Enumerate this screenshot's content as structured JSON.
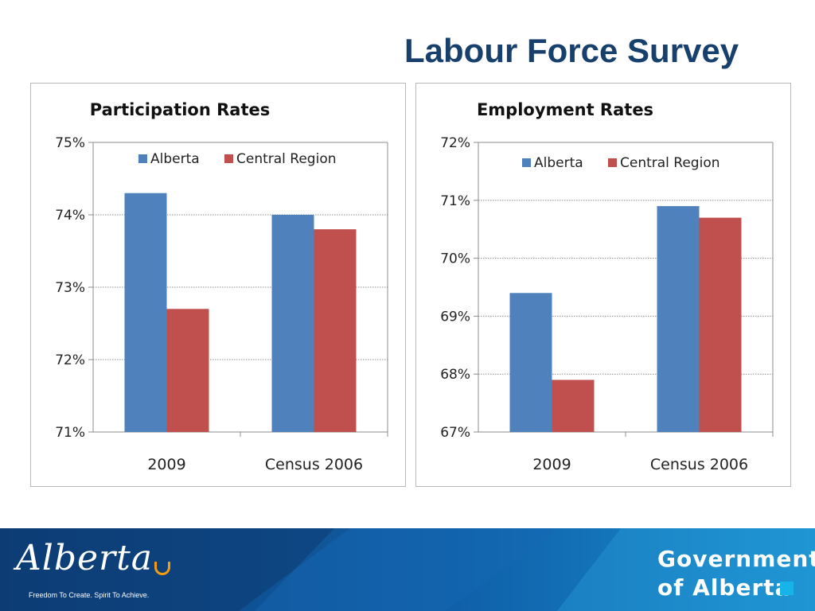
{
  "slide": {
    "title": "Labour Force Survey"
  },
  "chart_data": [
    {
      "type": "bar",
      "title": "Participation Rates",
      "categories": [
        "2009",
        "Census 2006"
      ],
      "series": [
        {
          "name": "Alberta",
          "values": [
            74.3,
            74.0
          ],
          "color": "#4f81bd"
        },
        {
          "name": "Central Region",
          "values": [
            72.7,
            73.8
          ],
          "color": "#c0504d"
        }
      ],
      "ylim": [
        71,
        75
      ],
      "yticks": [
        "75%",
        "74%",
        "73%",
        "72%",
        "71%"
      ],
      "grid": true,
      "legend": "top"
    },
    {
      "type": "bar",
      "title": "Employment Rates",
      "categories": [
        "2009",
        "Census 2006"
      ],
      "series": [
        {
          "name": "Alberta",
          "values": [
            69.4,
            70.9
          ],
          "color": "#4f81bd"
        },
        {
          "name": "Central Region",
          "values": [
            67.9,
            70.7
          ],
          "color": "#c0504d"
        }
      ],
      "ylim": [
        67,
        72
      ],
      "yticks": [
        "72%",
        "71%",
        "70%",
        "69%",
        "68%",
        "67%"
      ],
      "grid": true,
      "legend": "top"
    }
  ],
  "footer": {
    "logo_text": "Alberta",
    "tagline": "Freedom To Create. Spirit To Achieve.",
    "government_line1": "Government",
    "government_line2": "of Alberta",
    "accent_color": "#16b4e8"
  }
}
